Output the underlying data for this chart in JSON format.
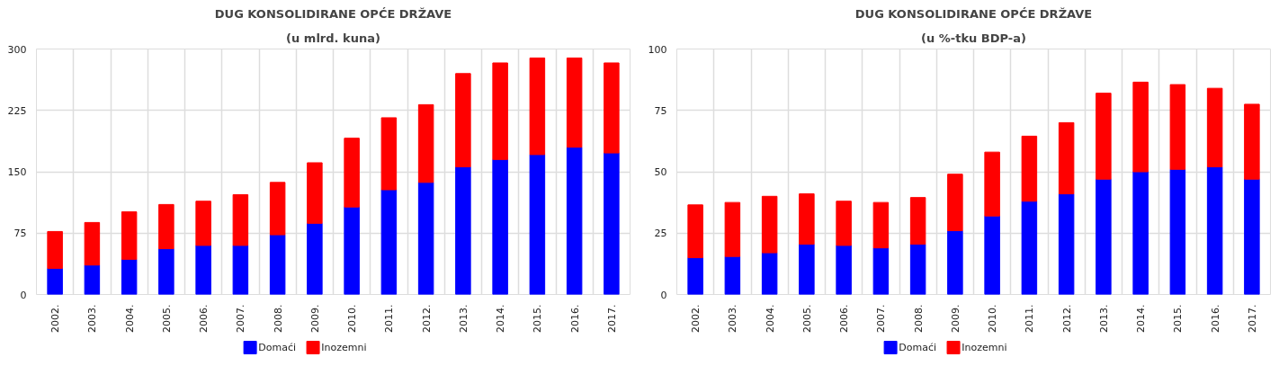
{
  "chart_data": [
    {
      "type": "bar",
      "title": "DUG KONSOLIDIRANE OPĆE DRŽAVE",
      "subtitle": "(u mlrd. kuna)",
      "categories": [
        "2002.",
        "2003.",
        "2004.",
        "2005.",
        "2006.",
        "2007.",
        "2008.",
        "2009.",
        "2010.",
        "2011.",
        "2012.",
        "2013.",
        "2014.",
        "2015.",
        "2016.",
        "2017."
      ],
      "stacked": true,
      "ylim": [
        0,
        300
      ],
      "yticks": [
        0,
        75,
        150,
        225,
        300
      ],
      "grid": true,
      "legend": "bottom",
      "series": [
        {
          "name": "Domaći",
          "color": "#0000ff",
          "values": [
            32,
            36,
            43,
            56,
            60,
            60,
            73,
            87,
            107,
            128,
            137,
            156,
            165,
            171,
            180,
            173
          ]
        },
        {
          "name": "Inozemni",
          "color": "#ff0000",
          "values": [
            45,
            52,
            58,
            54,
            54,
            62,
            64,
            74,
            84,
            88,
            95,
            114,
            118,
            118,
            109,
            110
          ]
        }
      ]
    },
    {
      "type": "bar",
      "title": "DUG KONSOLIDIRANE OPĆE DRŽAVE",
      "subtitle": "(u %-tku BDP-a)",
      "categories": [
        "2002.",
        "2003.",
        "2004.",
        "2005.",
        "2006.",
        "2007.",
        "2008.",
        "2009.",
        "2010.",
        "2011.",
        "2012.",
        "2013.",
        "2014.",
        "2015.",
        "2016.",
        "2017."
      ],
      "stacked": true,
      "ylim": [
        0,
        100
      ],
      "yticks": [
        0,
        25,
        50,
        75,
        100
      ],
      "grid": true,
      "legend": "bottom",
      "series": [
        {
          "name": "Domaći",
          "color": "#0000ff",
          "values": [
            15,
            15.5,
            17,
            20.5,
            20,
            19,
            20.5,
            26,
            32,
            38,
            41,
            47,
            50,
            51,
            52,
            47
          ]
        },
        {
          "name": "Inozemni",
          "color": "#ff0000",
          "values": [
            21.5,
            22,
            23,
            20.5,
            18,
            18.5,
            19,
            23,
            26,
            26.5,
            29,
            35,
            36.5,
            34.5,
            32,
            30.5
          ]
        }
      ]
    }
  ]
}
